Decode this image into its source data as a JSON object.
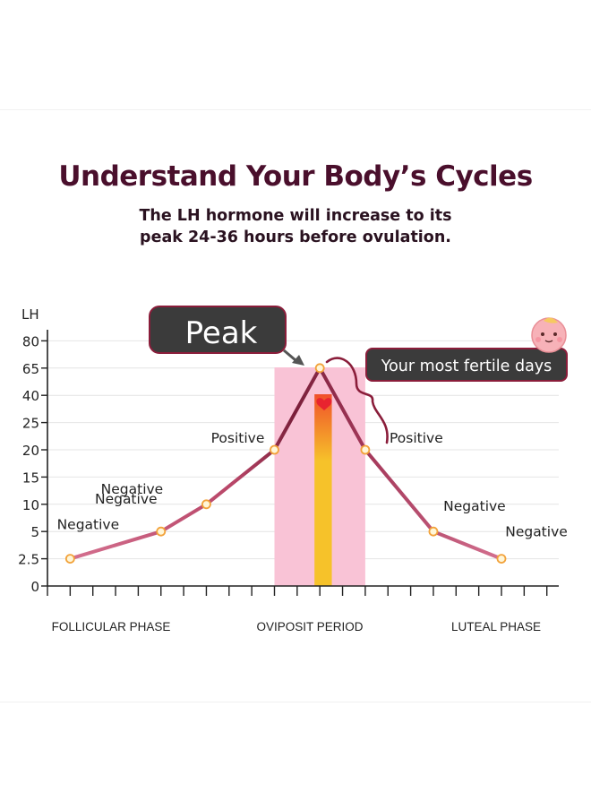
{
  "header": {
    "title": "Understand Your Body’s Cycles",
    "subtitle_line1": "The LH hormone will increase to its",
    "subtitle_line2": "peak 24-36 hours before ovulation."
  },
  "callouts": {
    "peak": "Peak",
    "fertile": "Your most fertile days"
  },
  "colors": {
    "title": "#4a0f2c",
    "line_dark": "#7a1f3a",
    "line_light": "#d4708f",
    "pink_band": "#f9c3d6",
    "fertile_band": "#f6c22a",
    "callout_bg": "#3b3b3b",
    "callout_border": "#8a1d3a",
    "brace": "#8a1d3a"
  },
  "chart_data": {
    "type": "line",
    "ylabel": "LH",
    "y_ticks": [
      "0",
      "2.5",
      "5",
      "10",
      "15",
      "20",
      "25",
      "40",
      "65",
      "80"
    ],
    "x_phases": [
      "FOLLICULAR PHASE",
      "OVIPOSIT PERIOD",
      "LUTEAL PHASE"
    ],
    "x_tick_count": 23,
    "series": [
      {
        "name": "LH",
        "points": [
          {
            "day": 1,
            "level": "2.5",
            "label": "Negative"
          },
          {
            "day": 5,
            "level": "5",
            "label": "Negative"
          },
          {
            "day": 7,
            "level": "10",
            "label": "Negative"
          },
          {
            "day": 10,
            "level": "20",
            "label": "Positive"
          },
          {
            "day": 12,
            "level": "65",
            "label": "Peak"
          },
          {
            "day": 14,
            "level": "20",
            "label": "Positive"
          },
          {
            "day": 17,
            "level": "5",
            "label": "Negative"
          },
          {
            "day": 20,
            "level": "2.5",
            "label": "Negative"
          }
        ]
      }
    ],
    "highlight_pink_days": [
      10,
      14
    ],
    "highlight_fertile_days": [
      12,
      13
    ]
  }
}
